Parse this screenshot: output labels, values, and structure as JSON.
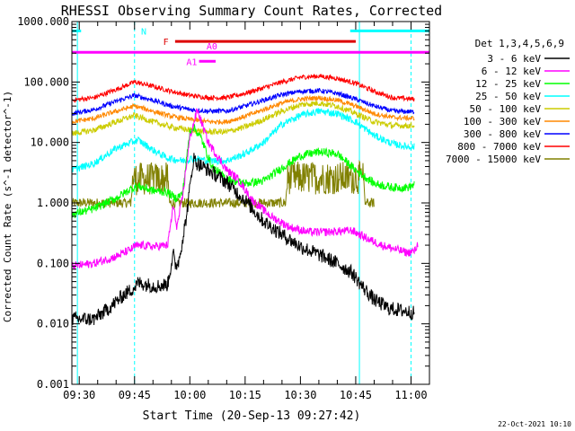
{
  "chart_data": {
    "type": "line",
    "title": "RHESSI Observing Summary Count Rates, Corrected",
    "ylabel": "Corrected Count Rate (s^-1 detector^-1)",
    "xlabel": "Start Time (20-Sep-13 09:27:42)",
    "xlim_minutes": [
      -2,
      95
    ],
    "ylim": [
      0.001,
      1000
    ],
    "yscale": "log",
    "y_ticks": [
      {
        "value": 0.001,
        "label": "0.001"
      },
      {
        "value": 0.01,
        "label": "0.010"
      },
      {
        "value": 0.1,
        "label": "0.100"
      },
      {
        "value": 1,
        "label": "1.000"
      },
      {
        "value": 10,
        "label": "10.000"
      },
      {
        "value": 100,
        "label": "100.000"
      },
      {
        "value": 1000,
        "label": "1000.000"
      }
    ],
    "x_ticks": [
      {
        "min": 0,
        "label": "09:30"
      },
      {
        "min": 15,
        "label": "09:45"
      },
      {
        "min": 30,
        "label": "10:00"
      },
      {
        "min": 45,
        "label": "10:15"
      },
      {
        "min": 60,
        "label": "10:30"
      },
      {
        "min": 75,
        "label": "10:45"
      },
      {
        "min": 90,
        "label": "11:00"
      }
    ],
    "legend_title": "Det 1,3,4,5,6,9",
    "series": [
      {
        "name": "3 - 6 keV",
        "color": "#000000",
        "noise": 0.12,
        "points": [
          [
            -2,
            0.012
          ],
          [
            4,
            0.012
          ],
          [
            8,
            0.018
          ],
          [
            12,
            0.03
          ],
          [
            15,
            0.04
          ],
          [
            16,
            0.048
          ],
          [
            18,
            0.045
          ],
          [
            21,
            0.042
          ],
          [
            24,
            0.045
          ],
          [
            25.5,
            0.15
          ],
          [
            26,
            0.09
          ],
          [
            27,
            0.11
          ],
          [
            29,
            0.55
          ],
          [
            31,
            5.5
          ],
          [
            32,
            4.5
          ],
          [
            35,
            3.5
          ],
          [
            40,
            2.2
          ],
          [
            45,
            1.1
          ],
          [
            50,
            0.5
          ],
          [
            55,
            0.3
          ],
          [
            60,
            0.19
          ],
          [
            65,
            0.14
          ],
          [
            70,
            0.1
          ],
          [
            74,
            0.07
          ],
          [
            77,
            0.04
          ],
          [
            80,
            0.025
          ],
          [
            84,
            0.018
          ],
          [
            89,
            0.016
          ],
          [
            91,
            0.015
          ]
        ]
      },
      {
        "name": "6 - 12 keV",
        "color": "#ff00ff",
        "noise": 0.07,
        "points": [
          [
            -2,
            0.09
          ],
          [
            4,
            0.1
          ],
          [
            10,
            0.13
          ],
          [
            14,
            0.17
          ],
          [
            15,
            0.19
          ],
          [
            17,
            0.2
          ],
          [
            20,
            0.19
          ],
          [
            24,
            0.2
          ],
          [
            25.5,
            0.9
          ],
          [
            26.5,
            0.4
          ],
          [
            28,
            1.2
          ],
          [
            30,
            12
          ],
          [
            31,
            20
          ],
          [
            32,
            35
          ],
          [
            35,
            10
          ],
          [
            40,
            3.5
          ],
          [
            43,
            2.5
          ],
          [
            47,
            1.1
          ],
          [
            52,
            0.6
          ],
          [
            57,
            0.4
          ],
          [
            62,
            0.33
          ],
          [
            67,
            0.33
          ],
          [
            71,
            0.34
          ],
          [
            74,
            0.35
          ],
          [
            78,
            0.26
          ],
          [
            82,
            0.2
          ],
          [
            86,
            0.17
          ],
          [
            89,
            0.15
          ],
          [
            91,
            0.16
          ],
          [
            92,
            0.22
          ]
        ]
      },
      {
        "name": "12 - 25 keV",
        "color": "#00ff00",
        "noise": 0.07,
        "points": [
          [
            -2,
            0.65
          ],
          [
            4,
            0.8
          ],
          [
            10,
            1.2
          ],
          [
            14,
            1.7
          ],
          [
            16,
            1.9
          ],
          [
            20,
            1.6
          ],
          [
            24,
            1.5
          ],
          [
            26,
            1.2
          ],
          [
            28,
            1.4
          ],
          [
            30,
            15
          ],
          [
            31,
            18
          ],
          [
            33,
            12
          ],
          [
            36,
            4
          ],
          [
            40,
            2.5
          ],
          [
            45,
            2.1
          ],
          [
            50,
            2.3
          ],
          [
            55,
            3.8
          ],
          [
            60,
            6
          ],
          [
            65,
            7
          ],
          [
            70,
            6.5
          ],
          [
            75,
            3.5
          ],
          [
            80,
            2.1
          ],
          [
            85,
            1.8
          ],
          [
            89,
            1.8
          ],
          [
            91,
            2
          ]
        ]
      },
      {
        "name": "25 - 50 keV",
        "color": "#00ffff",
        "noise": 0.06,
        "points": [
          [
            -2,
            3.5
          ],
          [
            4,
            4.5
          ],
          [
            10,
            8
          ],
          [
            14,
            10
          ],
          [
            16,
            11
          ],
          [
            20,
            7.5
          ],
          [
            24,
            5.5
          ],
          [
            28,
            5
          ],
          [
            31,
            5.5
          ],
          [
            35,
            5
          ],
          [
            40,
            5
          ],
          [
            45,
            6.5
          ],
          [
            50,
            10
          ],
          [
            55,
            20
          ],
          [
            60,
            28
          ],
          [
            65,
            33
          ],
          [
            70,
            30
          ],
          [
            75,
            22
          ],
          [
            80,
            13
          ],
          [
            85,
            9.5
          ],
          [
            89,
            8.5
          ],
          [
            91,
            8.5
          ]
        ]
      },
      {
        "name": "50 - 100 keV",
        "color": "#cccc00",
        "noise": 0.05,
        "points": [
          [
            -2,
            14
          ],
          [
            4,
            16
          ],
          [
            10,
            22
          ],
          [
            15,
            28
          ],
          [
            20,
            22
          ],
          [
            25,
            18
          ],
          [
            30,
            16
          ],
          [
            35,
            15
          ],
          [
            40,
            15
          ],
          [
            45,
            18
          ],
          [
            50,
            24
          ],
          [
            55,
            33
          ],
          [
            60,
            42
          ],
          [
            65,
            45
          ],
          [
            70,
            40
          ],
          [
            75,
            30
          ],
          [
            80,
            22
          ],
          [
            85,
            19
          ],
          [
            91,
            19
          ]
        ]
      },
      {
        "name": "100 - 300 keV",
        "color": "#ff8800",
        "noise": 0.04,
        "points": [
          [
            -2,
            22
          ],
          [
            4,
            25
          ],
          [
            10,
            33
          ],
          [
            15,
            40
          ],
          [
            20,
            33
          ],
          [
            25,
            27
          ],
          [
            30,
            24
          ],
          [
            35,
            22
          ],
          [
            40,
            22
          ],
          [
            45,
            27
          ],
          [
            50,
            35
          ],
          [
            55,
            45
          ],
          [
            60,
            52
          ],
          [
            65,
            55
          ],
          [
            70,
            50
          ],
          [
            75,
            40
          ],
          [
            80,
            30
          ],
          [
            85,
            26
          ],
          [
            91,
            25
          ]
        ]
      },
      {
        "name": "300 - 800 keV",
        "color": "#0000ff",
        "noise": 0.04,
        "points": [
          [
            -2,
            30
          ],
          [
            4,
            35
          ],
          [
            10,
            48
          ],
          [
            15,
            60
          ],
          [
            20,
            50
          ],
          [
            25,
            40
          ],
          [
            30,
            35
          ],
          [
            35,
            33
          ],
          [
            40,
            33
          ],
          [
            45,
            40
          ],
          [
            50,
            50
          ],
          [
            55,
            62
          ],
          [
            60,
            70
          ],
          [
            65,
            72
          ],
          [
            70,
            65
          ],
          [
            75,
            52
          ],
          [
            80,
            40
          ],
          [
            85,
            33
          ],
          [
            91,
            32
          ]
        ]
      },
      {
        "name": "800 - 7000 keV",
        "color": "#ff0000",
        "noise": 0.04,
        "points": [
          [
            -2,
            50
          ],
          [
            4,
            55
          ],
          [
            10,
            75
          ],
          [
            15,
            100
          ],
          [
            20,
            85
          ],
          [
            25,
            70
          ],
          [
            30,
            60
          ],
          [
            35,
            55
          ],
          [
            40,
            55
          ],
          [
            45,
            65
          ],
          [
            50,
            80
          ],
          [
            55,
            100
          ],
          [
            60,
            120
          ],
          [
            65,
            125
          ],
          [
            70,
            115
          ],
          [
            75,
            95
          ],
          [
            80,
            70
          ],
          [
            85,
            55
          ],
          [
            91,
            52
          ]
        ]
      },
      {
        "name": "7000 - 15000 keV",
        "color": "#808000",
        "noise": 0.08,
        "points": [
          [
            -2,
            1
          ],
          [
            14,
            1
          ],
          [
            14.5,
            2.5
          ],
          [
            24,
            2.5
          ],
          [
            24.5,
            1
          ],
          [
            56,
            1
          ],
          [
            56.5,
            2.6
          ],
          [
            77,
            2.6
          ],
          [
            77.5,
            1
          ],
          [
            80,
            1
          ]
        ]
      }
    ],
    "annotations": {
      "N_label": "N",
      "F_label": "F",
      "A0_label": "A0",
      "A1_label": "A1",
      "N_segments": [
        [
          -2,
          0.5
        ],
        [
          73.5,
          95
        ]
      ],
      "N_level": 700,
      "F_segment": [
        26,
        75
      ],
      "F_level": 470,
      "M_segment": [
        -2,
        95
      ],
      "M_level": 310,
      "A_segment": [
        32.5,
        37
      ],
      "A_level": 220,
      "colors": {
        "N": "#00ffff",
        "F": "#dd0000",
        "M": "#ff00ff"
      },
      "vlines_dashed": [
        15,
        90
      ],
      "vlines_solid": [
        -0.5,
        76
      ]
    }
  },
  "timestamp": "22-Oct-2021 10:10"
}
